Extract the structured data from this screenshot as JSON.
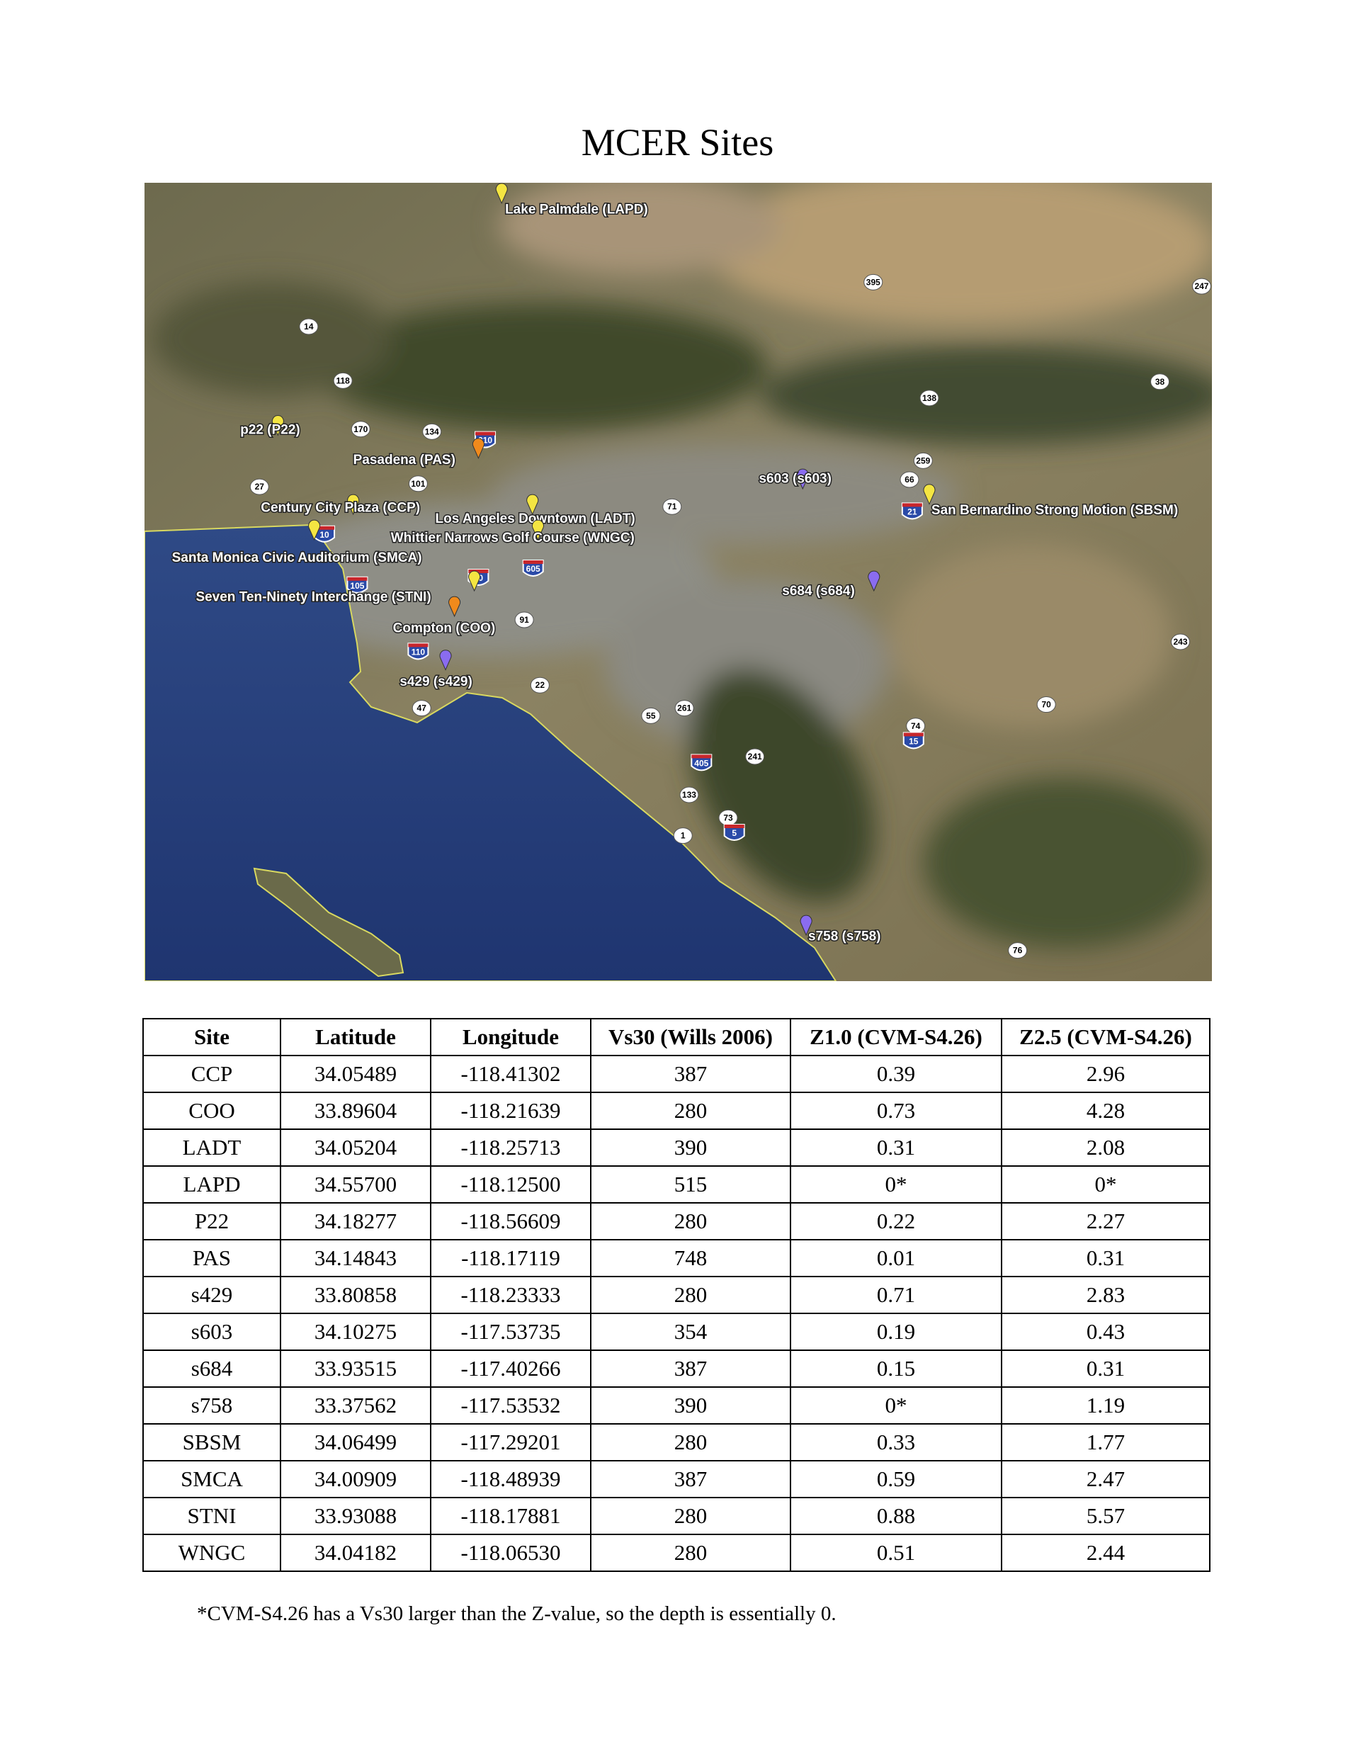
{
  "title": "MCER Sites",
  "map": {
    "markers": [
      {
        "label": "Lake Palmdale (LAPD)",
        "color": "#f4e542"
      },
      {
        "label": "p22 (P22)",
        "color": "#f4e542"
      },
      {
        "label": "Pasadena (PAS)",
        "color": "#f08a1c"
      },
      {
        "label": "Century City Plaza (CCP)",
        "color": "#f4e542"
      },
      {
        "label": "Los Angeles Downtown (LADT)",
        "color": "#f4e542"
      },
      {
        "label": "Whittier Narrows Golf Course (WNGC)",
        "color": "#f4e542"
      },
      {
        "label": "Santa Monica Civic Auditorium (SMCA)",
        "color": "#f4e542"
      },
      {
        "label": "Seven Ten-Ninety Interchange (STNI)",
        "color": "#f4e542"
      },
      {
        "label": "Compton (COO)",
        "color": "#f08a1c"
      },
      {
        "label": "s429 (s429)",
        "color": "#8a6cf0"
      },
      {
        "label": "s603 (s603)",
        "color": "#8a6cf0"
      },
      {
        "label": "San Bernardino Strong Motion (SBSM)",
        "color": "#f4e542"
      },
      {
        "label": "s684 (s684)",
        "color": "#8a6cf0"
      },
      {
        "label": "s758 (s758)",
        "color": "#8a6cf0"
      }
    ],
    "shields": [
      {
        "n": "14",
        "type": "state"
      },
      {
        "n": "118",
        "type": "state"
      },
      {
        "n": "170",
        "type": "state"
      },
      {
        "n": "134",
        "type": "state"
      },
      {
        "n": "101",
        "type": "state"
      },
      {
        "n": "27",
        "type": "state"
      },
      {
        "n": "210",
        "type": "interstate"
      },
      {
        "n": "71",
        "type": "state"
      },
      {
        "n": "66",
        "type": "state"
      },
      {
        "n": "259",
        "type": "state"
      },
      {
        "n": "138",
        "type": "state"
      },
      {
        "n": "395",
        "type": "state"
      },
      {
        "n": "247",
        "type": "state"
      },
      {
        "n": "38",
        "type": "state"
      },
      {
        "n": "243",
        "type": "state"
      },
      {
        "n": "70",
        "type": "state"
      },
      {
        "n": "74",
        "type": "state"
      },
      {
        "n": "15",
        "type": "interstate"
      },
      {
        "n": "405",
        "type": "interstate"
      },
      {
        "n": "241",
        "type": "state"
      },
      {
        "n": "261",
        "type": "state"
      },
      {
        "n": "55",
        "type": "state"
      },
      {
        "n": "22",
        "type": "state"
      },
      {
        "n": "47",
        "type": "state"
      },
      {
        "n": "133",
        "type": "state"
      },
      {
        "n": "1",
        "type": "state"
      },
      {
        "n": "73",
        "type": "state"
      },
      {
        "n": "5",
        "type": "interstate"
      },
      {
        "n": "76",
        "type": "state"
      },
      {
        "n": "110",
        "type": "interstate"
      },
      {
        "n": "105",
        "type": "interstate"
      },
      {
        "n": "10",
        "type": "interstate"
      },
      {
        "n": "10",
        "type": "interstate"
      },
      {
        "n": "91",
        "type": "state"
      },
      {
        "n": "605",
        "type": "interstate"
      },
      {
        "n": "21",
        "type": "interstate"
      }
    ]
  },
  "table": {
    "headers": [
      "Site",
      "Latitude",
      "Longitude",
      "Vs30 (Wills 2006)",
      "Z1.0 (CVM-S4.26)",
      "Z2.5 (CVM-S4.26)"
    ],
    "rows": [
      [
        "CCP",
        "34.05489",
        "-118.41302",
        "387",
        "0.39",
        "2.96"
      ],
      [
        "COO",
        "33.89604",
        "-118.21639",
        "280",
        "0.73",
        "4.28"
      ],
      [
        "LADT",
        "34.05204",
        "-118.25713",
        "390",
        "0.31",
        "2.08"
      ],
      [
        "LAPD",
        "34.55700",
        "-118.12500",
        "515",
        "0*",
        "0*"
      ],
      [
        "P22",
        "34.18277",
        "-118.56609",
        "280",
        "0.22",
        "2.27"
      ],
      [
        "PAS",
        "34.14843",
        "-118.17119",
        "748",
        "0.01",
        "0.31"
      ],
      [
        "s429",
        "33.80858",
        "-118.23333",
        "280",
        "0.71",
        "2.83"
      ],
      [
        "s603",
        "34.10275",
        "-117.53735",
        "354",
        "0.19",
        "0.43"
      ],
      [
        "s684",
        "33.93515",
        "-117.40266",
        "387",
        "0.15",
        "0.31"
      ],
      [
        "s758",
        "33.37562",
        "-117.53532",
        "390",
        "0*",
        "1.19"
      ],
      [
        "SBSM",
        "34.06499",
        "-117.29201",
        "280",
        "0.33",
        "1.77"
      ],
      [
        "SMCA",
        "34.00909",
        "-118.48939",
        "387",
        "0.59",
        "2.47"
      ],
      [
        "STNI",
        "33.93088",
        "-118.17881",
        "280",
        "0.88",
        "5.57"
      ],
      [
        "WNGC",
        "34.04182",
        "-118.06530",
        "280",
        "0.51",
        "2.44"
      ]
    ]
  },
  "footnote": "*CVM-S4.26 has a Vs30 larger than the Z-value, so the depth is essentially 0."
}
